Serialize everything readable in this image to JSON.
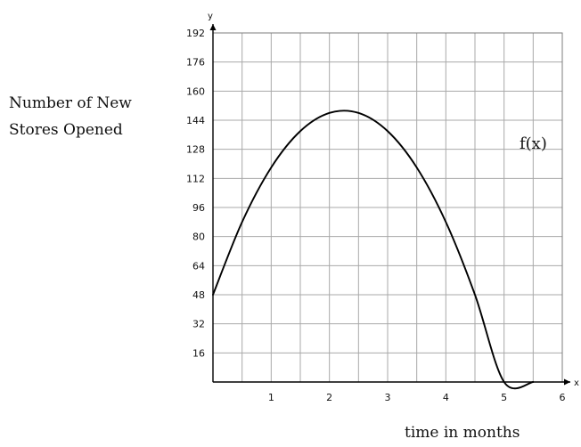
{
  "chart_data": {
    "type": "line",
    "title": "",
    "xlabel": "time in months",
    "ylabel_lines": [
      "Number of New",
      "Stores Opened"
    ],
    "x_axis_symbol": "x",
    "y_axis_symbol": "y",
    "xlim": [
      0,
      6
    ],
    "ylim": [
      0,
      192
    ],
    "x_step": 0.5,
    "y_step": 16,
    "x_ticks": [
      1,
      2,
      3,
      4,
      5,
      6
    ],
    "y_ticks": [
      16,
      32,
      48,
      64,
      80,
      96,
      112,
      128,
      144,
      160,
      176,
      192
    ],
    "grid": true,
    "series": [
      {
        "name": "f(x)",
        "color": "#000000",
        "points": [
          [
            0,
            48
          ],
          [
            0.5,
            88
          ],
          [
            1,
            118
          ],
          [
            1.5,
            138
          ],
          [
            2,
            148
          ],
          [
            2.5,
            148
          ],
          [
            3,
            138
          ],
          [
            3.5,
            118
          ],
          [
            4,
            88
          ],
          [
            4.5,
            48
          ],
          [
            5,
            0
          ],
          [
            5.5,
            0
          ]
        ]
      }
    ]
  }
}
